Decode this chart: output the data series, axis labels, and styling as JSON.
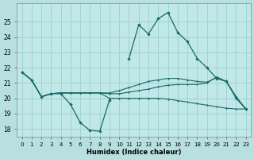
{
  "x": [
    0,
    1,
    2,
    3,
    4,
    5,
    6,
    7,
    8,
    9,
    10,
    11,
    12,
    13,
    14,
    15,
    16,
    17,
    18,
    19,
    20,
    21,
    22,
    23
  ],
  "line1": [
    21.7,
    21.2,
    20.1,
    20.3,
    20.3,
    19.6,
    18.4,
    17.9,
    17.85,
    19.9,
    null,
    22.6,
    24.8,
    24.2,
    25.2,
    25.6,
    24.3,
    23.7,
    22.6,
    22.0,
    21.3,
    21.1,
    20.1,
    19.3
  ],
  "line2": [
    21.7,
    21.2,
    20.1,
    20.3,
    20.35,
    20.35,
    20.35,
    20.35,
    20.35,
    20.3,
    20.3,
    20.4,
    20.5,
    20.6,
    20.75,
    20.85,
    20.9,
    20.9,
    20.9,
    21.0,
    21.4,
    21.1,
    20.0,
    19.3
  ],
  "line3": [
    21.7,
    21.2,
    20.1,
    20.3,
    20.35,
    20.35,
    20.35,
    20.35,
    20.35,
    20.0,
    20.0,
    20.0,
    20.0,
    20.0,
    20.0,
    19.95,
    19.85,
    19.75,
    19.65,
    19.55,
    19.45,
    19.35,
    19.3,
    19.3
  ],
  "line4": [
    21.7,
    21.2,
    20.1,
    20.3,
    20.35,
    20.35,
    20.35,
    20.35,
    20.35,
    20.35,
    20.5,
    20.7,
    20.9,
    21.1,
    21.2,
    21.3,
    21.3,
    21.2,
    21.1,
    21.05,
    21.35,
    21.1,
    20.05,
    19.3
  ],
  "bg_color": "#b8e0e0",
  "plot_bg_color": "#c0e8e8",
  "line_color": "#1a6868",
  "grid_color": "#9ecece",
  "xlabel": "Humidex (Indice chaleur)",
  "ylim": [
    17.5,
    26.2
  ],
  "xlim": [
    -0.5,
    23.5
  ],
  "yticks": [
    18,
    19,
    20,
    21,
    22,
    23,
    24,
    25
  ],
  "xticks": [
    0,
    1,
    2,
    3,
    4,
    5,
    6,
    7,
    8,
    9,
    10,
    11,
    12,
    13,
    14,
    15,
    16,
    17,
    18,
    19,
    20,
    21,
    22,
    23
  ],
  "xlabel_fontsize": 6.0,
  "ytick_fontsize": 5.5,
  "xtick_fontsize": 5.0
}
